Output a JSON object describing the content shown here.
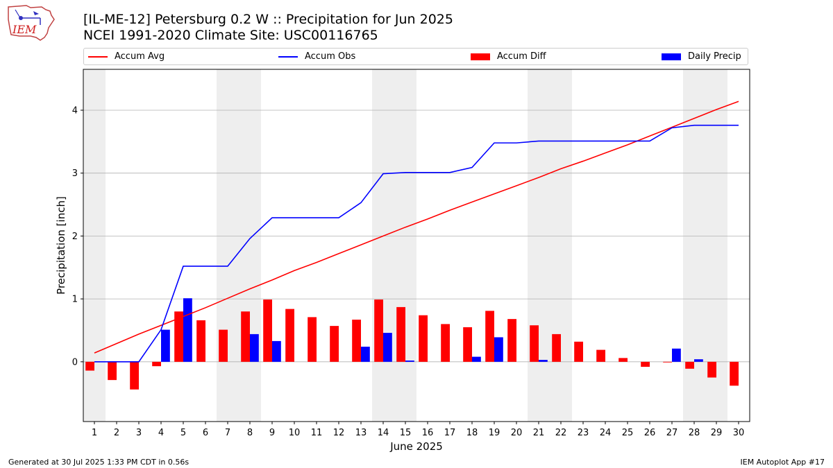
{
  "logo": {
    "text": "IEM"
  },
  "title_line1": "[IL-ME-12] Petersburg 0.2 W :: Precipitation for Jun 2025",
  "title_line2": "NCEI 1991-2020 Climate Site: USC00116765",
  "footer_left": "Generated at 30 Jul 2025 1:33 PM CDT in 0.56s",
  "footer_right": "IEM Autoplot App #17",
  "colors": {
    "avg": "#ff0000",
    "obs": "#0000ff",
    "diff": "#ff0000",
    "daily": "#0000ff",
    "weekend": "#eeeeee",
    "grid": "#b0b0b0"
  },
  "chart_data": {
    "type": "bar",
    "title": "[IL-ME-12] Petersburg 0.2 W :: Precipitation for Jun 2025",
    "subtitle": "NCEI 1991-2020 Climate Site: USC00116765",
    "xlabel": "June 2025",
    "ylabel": "Precipitation [inch]",
    "x": [
      1,
      2,
      3,
      4,
      5,
      6,
      7,
      8,
      9,
      10,
      11,
      12,
      13,
      14,
      15,
      16,
      17,
      18,
      19,
      20,
      21,
      22,
      23,
      24,
      25,
      26,
      27,
      28,
      29,
      30
    ],
    "xlim": [
      0.5,
      30.5
    ],
    "ylim": [
      -0.95,
      4.65
    ],
    "yticks": [
      0,
      1,
      2,
      3,
      4
    ],
    "grid": "horizontal",
    "legend_position": "top",
    "shaded_weekend_days": [
      1,
      7,
      8,
      14,
      15,
      21,
      22,
      28,
      29
    ],
    "series": [
      {
        "name": "Accum Avg",
        "type": "line",
        "color": "#ff0000",
        "values": [
          0.14,
          0.29,
          0.44,
          0.58,
          0.72,
          0.86,
          1.01,
          1.16,
          1.3,
          1.45,
          1.58,
          1.72,
          1.86,
          2.0,
          2.14,
          2.27,
          2.41,
          2.54,
          2.67,
          2.8,
          2.93,
          3.07,
          3.19,
          3.32,
          3.45,
          3.59,
          3.73,
          3.87,
          4.01,
          4.14
        ]
      },
      {
        "name": "Accum Obs",
        "type": "line",
        "color": "#0000ff",
        "values": [
          0.0,
          0.0,
          0.0,
          0.51,
          1.52,
          1.52,
          1.52,
          1.96,
          2.29,
          2.29,
          2.29,
          2.29,
          2.53,
          2.99,
          3.01,
          3.01,
          3.01,
          3.09,
          3.48,
          3.48,
          3.51,
          3.51,
          3.51,
          3.51,
          3.51,
          3.51,
          3.72,
          3.76,
          3.76,
          3.76
        ]
      },
      {
        "name": "Accum Diff",
        "type": "bar",
        "color": "#ff0000",
        "values": [
          -0.14,
          -0.29,
          -0.44,
          -0.07,
          0.8,
          0.66,
          0.51,
          0.8,
          0.99,
          0.84,
          0.71,
          0.57,
          0.67,
          0.99,
          0.87,
          0.74,
          0.6,
          0.55,
          0.81,
          0.68,
          0.58,
          0.44,
          0.32,
          0.19,
          0.06,
          -0.08,
          -0.01,
          -0.11,
          -0.25,
          -0.38
        ]
      },
      {
        "name": "Daily Precip",
        "type": "bar",
        "color": "#0000ff",
        "values": [
          0,
          0,
          0,
          0.51,
          1.01,
          0,
          0,
          0.44,
          0.33,
          0,
          0,
          0,
          0.24,
          0.46,
          0.02,
          0,
          0,
          0.08,
          0.39,
          0,
          0.03,
          0,
          0,
          0,
          0,
          0,
          0.21,
          0.04,
          0,
          0
        ]
      }
    ]
  }
}
